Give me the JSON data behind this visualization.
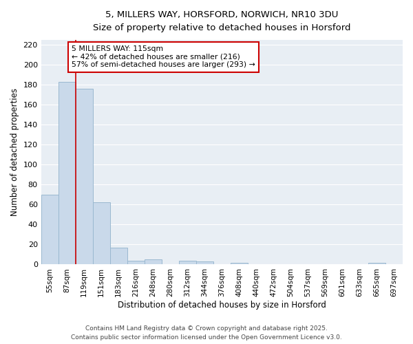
{
  "title_line1": "5, MILLERS WAY, HORSFORD, NORWICH, NR10 3DU",
  "title_line2": "Size of property relative to detached houses in Horsford",
  "xlabel": "Distribution of detached houses by size in Horsford",
  "ylabel": "Number of detached properties",
  "bar_color": "#c9d9ea",
  "bar_edge_color": "#9ab8d0",
  "bins": [
    "55sqm",
    "87sqm",
    "119sqm",
    "151sqm",
    "183sqm",
    "216sqm",
    "248sqm",
    "280sqm",
    "312sqm",
    "344sqm",
    "376sqm",
    "408sqm",
    "440sqm",
    "472sqm",
    "504sqm",
    "537sqm",
    "569sqm",
    "601sqm",
    "633sqm",
    "665sqm",
    "697sqm"
  ],
  "values": [
    70,
    183,
    176,
    62,
    17,
    4,
    5,
    0,
    4,
    3,
    0,
    2,
    0,
    0,
    0,
    0,
    0,
    0,
    0,
    2,
    0
  ],
  "red_line_bin_index": 2,
  "annotation_title": "5 MILLERS WAY: 115sqm",
  "annotation_line1": "← 42% of detached houses are smaller (216)",
  "annotation_line2": "57% of semi-detached houses are larger (293) →",
  "annotation_box_color": "#ffffff",
  "annotation_box_edge": "#cc0000",
  "red_line_color": "#cc0000",
  "ylim": [
    0,
    225
  ],
  "yticks": [
    0,
    20,
    40,
    60,
    80,
    100,
    120,
    140,
    160,
    180,
    200,
    220
  ],
  "footer_line1": "Contains HM Land Registry data © Crown copyright and database right 2025.",
  "footer_line2": "Contains public sector information licensed under the Open Government Licence v3.0.",
  "fig_background_color": "#ffffff",
  "plot_background_color": "#e8eef4",
  "grid_color": "#ffffff"
}
